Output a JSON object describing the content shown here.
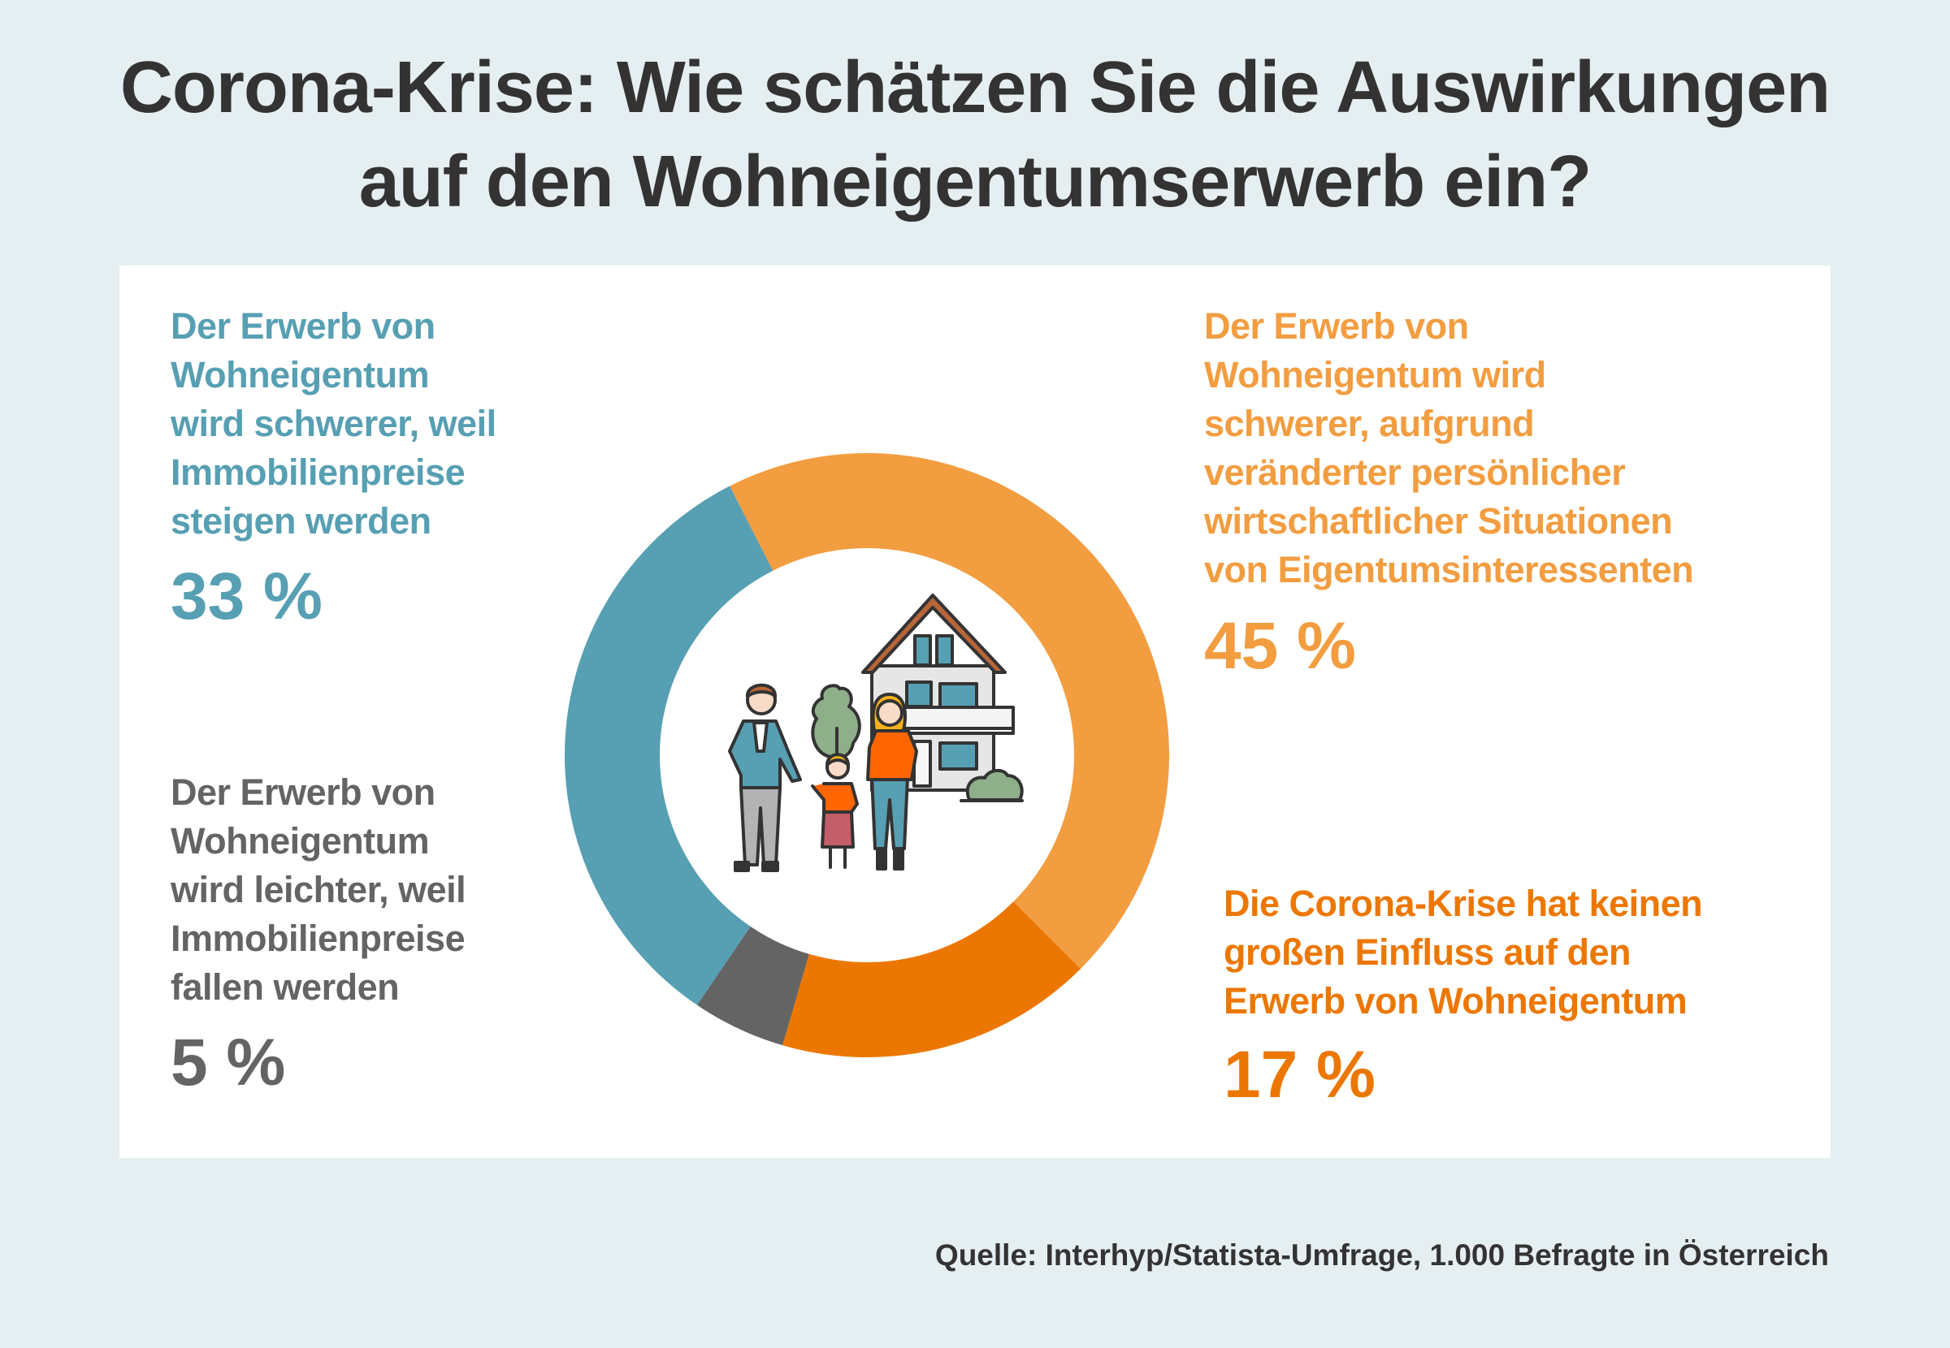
{
  "title": {
    "line1": "Corona-Krise: Wie schätzen Sie die Auswirkungen",
    "line2": "auf den Wohneigentumserwerb ein?"
  },
  "source": "Quelle: Interhyp/Statista-Umfrage, 1.000 Befragte in Österreich",
  "chart_data": {
    "type": "pie",
    "donut": true,
    "title": "Corona-Krise: Wie schätzen Sie die Auswirkungen auf den Wohneigentumserwerb ein?",
    "unit": "%",
    "slices": [
      {
        "label_lines": [
          "Der Erwerb von",
          "Wohneigentum wird",
          "schwerer, aufgrund",
          "veränderter persönlicher",
          "wirtschaftlicher Situationen",
          "von Eigentumsinteressenten"
        ],
        "value": 45,
        "value_label": "45 %",
        "color": "#f29d40"
      },
      {
        "label_lines": [
          "Die Corona-Krise hat keinen",
          "großen Einfluss auf den",
          "Erwerb von Wohneigentum"
        ],
        "value": 17,
        "value_label": "17 %",
        "color": "#ec7700"
      },
      {
        "label_lines": [
          "Der Erwerb von",
          "Wohneigentum",
          "wird leichter, weil",
          "Immobilienpreise",
          "fallen werden"
        ],
        "value": 5,
        "value_label": "5 %",
        "color": "#646464"
      },
      {
        "label_lines": [
          "Der Erwerb von",
          "Wohneigentum",
          "wird schwerer, weil",
          "Immobilienpreise",
          "steigen werden"
        ],
        "value": 33,
        "value_label": "33 %",
        "color": "#579fb3"
      }
    ]
  }
}
